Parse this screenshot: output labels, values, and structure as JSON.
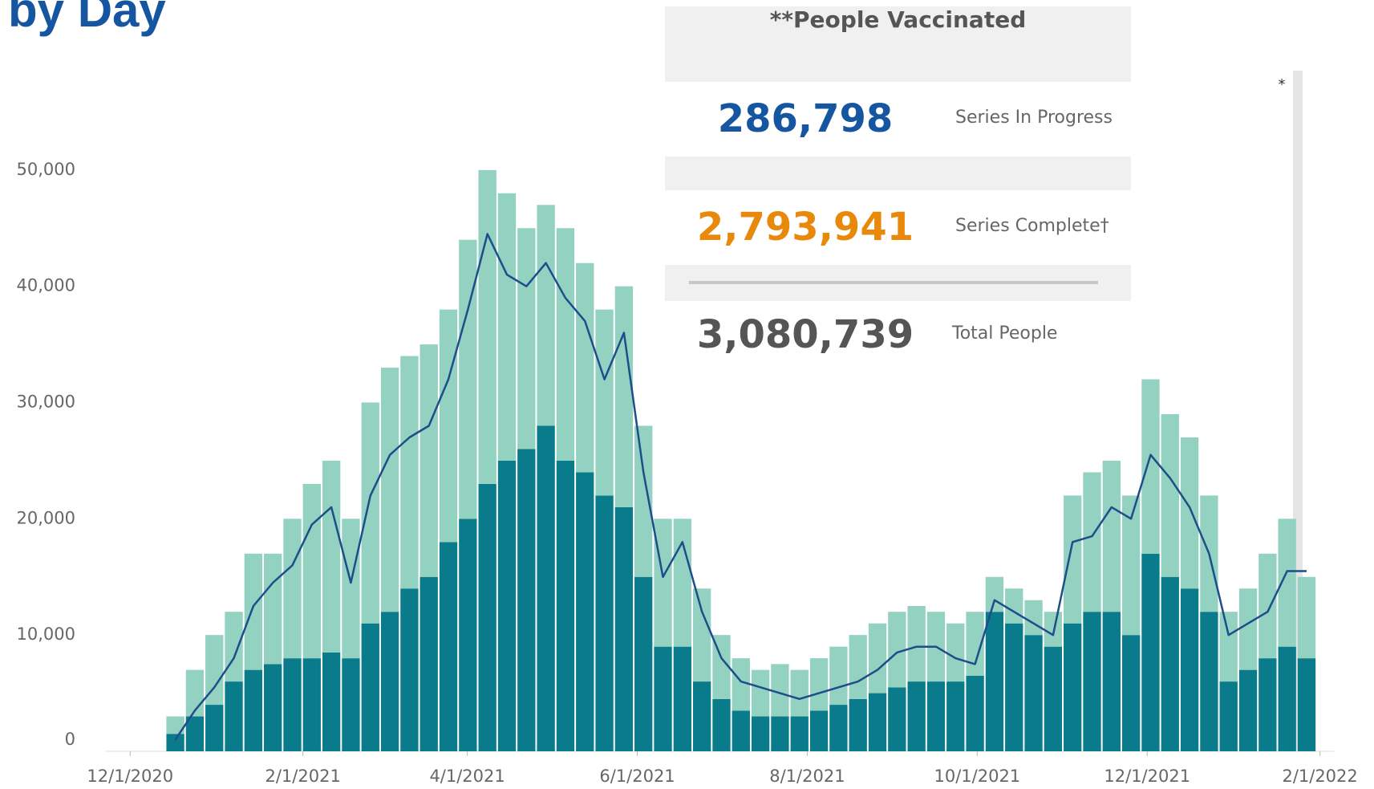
{
  "header": {
    "title": "by Day"
  },
  "card": {
    "title": "**People Vaccinated",
    "rows": [
      {
        "value": "286,798",
        "label": "Series In Progress"
      },
      {
        "value": "2,793,941",
        "label": "Series Complete†"
      },
      {
        "value": "3,080,739",
        "label": "Total People"
      }
    ]
  },
  "note": "*",
  "chart_data": {
    "type": "bar",
    "x": [
      "12/14/2020",
      "12/21/2020",
      "12/28/2020",
      "1/4/2021",
      "1/11/2021",
      "1/18/2021",
      "1/25/2021",
      "2/1/2021",
      "2/8/2021",
      "2/15/2021",
      "2/22/2021",
      "3/1/2021",
      "3/8/2021",
      "3/15/2021",
      "3/22/2021",
      "3/29/2021",
      "4/5/2021",
      "4/12/2021",
      "4/19/2021",
      "4/26/2021",
      "5/3/2021",
      "5/10/2021",
      "5/17/2021",
      "5/24/2021",
      "5/31/2021",
      "6/7/2021",
      "6/14/2021",
      "6/21/2021",
      "6/28/2021",
      "7/5/2021",
      "7/12/2021",
      "7/19/2021",
      "7/26/2021",
      "8/2/2021",
      "8/9/2021",
      "8/16/2021",
      "8/23/2021",
      "8/30/2021",
      "9/6/2021",
      "9/13/2021",
      "9/20/2021",
      "9/27/2021",
      "10/4/2021",
      "10/11/2021",
      "10/18/2021",
      "10/25/2021",
      "11/1/2021",
      "11/8/2021",
      "11/15/2021",
      "11/22/2021",
      "11/29/2021",
      "12/6/2021",
      "12/13/2021",
      "12/20/2021",
      "12/27/2021",
      "1/3/2022",
      "1/10/2022",
      "1/17/2022",
      "1/24/2022"
    ],
    "series": [
      {
        "color": "#0a7b8a",
        "values": [
          1500,
          3000,
          4000,
          6000,
          7000,
          7500,
          8000,
          8000,
          8500,
          8000,
          11000,
          12000,
          14000,
          15000,
          18000,
          20000,
          23000,
          25000,
          26000,
          28000,
          25000,
          24000,
          22000,
          21000,
          15000,
          9000,
          9000,
          6000,
          4500,
          3500,
          3000,
          3000,
          3000,
          3500,
          4000,
          4500,
          5000,
          5500,
          6000,
          6000,
          6000,
          6500,
          12000,
          11000,
          10000,
          9000,
          11000,
          12000,
          12000,
          10000,
          17000,
          15000,
          14000,
          12000,
          6000,
          7000,
          8000,
          9000,
          8000
        ]
      },
      {
        "color": "#93d1c0",
        "values": [
          1500,
          4000,
          6000,
          6000,
          10000,
          9500,
          12000,
          15000,
          16500,
          12000,
          19000,
          21000,
          20000,
          20000,
          20000,
          24000,
          27000,
          23000,
          19000,
          19000,
          20000,
          18000,
          16000,
          19000,
          13000,
          11000,
          11000,
          8000,
          5500,
          4500,
          4000,
          4500,
          4000,
          4500,
          5000,
          5500,
          6000,
          6500,
          6500,
          6000,
          5000,
          5500,
          3000,
          3000,
          3000,
          3000,
          11000,
          12000,
          13000,
          12000,
          15000,
          14000,
          13000,
          10000,
          6000,
          7000,
          9000,
          11000,
          7000
        ]
      }
    ],
    "line": {
      "type": "line",
      "color": "#1d4e89",
      "values": [
        1000,
        3500,
        5500,
        8000,
        12500,
        14500,
        16000,
        19500,
        21000,
        14500,
        22000,
        25500,
        27000,
        28000,
        32000,
        38000,
        44500,
        41000,
        40000,
        42000,
        39000,
        37000,
        32000,
        36000,
        24000,
        15000,
        18000,
        12000,
        8000,
        6000,
        5500,
        5000,
        4500,
        5000,
        5500,
        6000,
        7000,
        8500,
        9000,
        9000,
        8000,
        7500,
        13000,
        12000,
        11000,
        10000,
        18000,
        18500,
        21000,
        20000,
        25500,
        23500,
        21000,
        17000,
        10000,
        11000,
        12000,
        15500,
        15500
      ]
    },
    "xlim": [
      "11/22/2020",
      "2/6/2022"
    ],
    "xticks": [
      "12/1/2020",
      "2/1/2021",
      "4/1/2021",
      "6/1/2021",
      "8/1/2021",
      "10/1/2021",
      "12/1/2021",
      "2/1/2022"
    ],
    "ylim": [
      0,
      58000
    ],
    "yticks": [
      0,
      {
        "value": 10000,
        "label": "10,000"
      },
      {
        "value": 20000,
        "label": "20,000"
      },
      {
        "value": 30000,
        "label": "30,000"
      },
      {
        "value": 40000,
        "label": "40,000"
      },
      {
        "value": 50000,
        "label": "50,000"
      }
    ]
  }
}
